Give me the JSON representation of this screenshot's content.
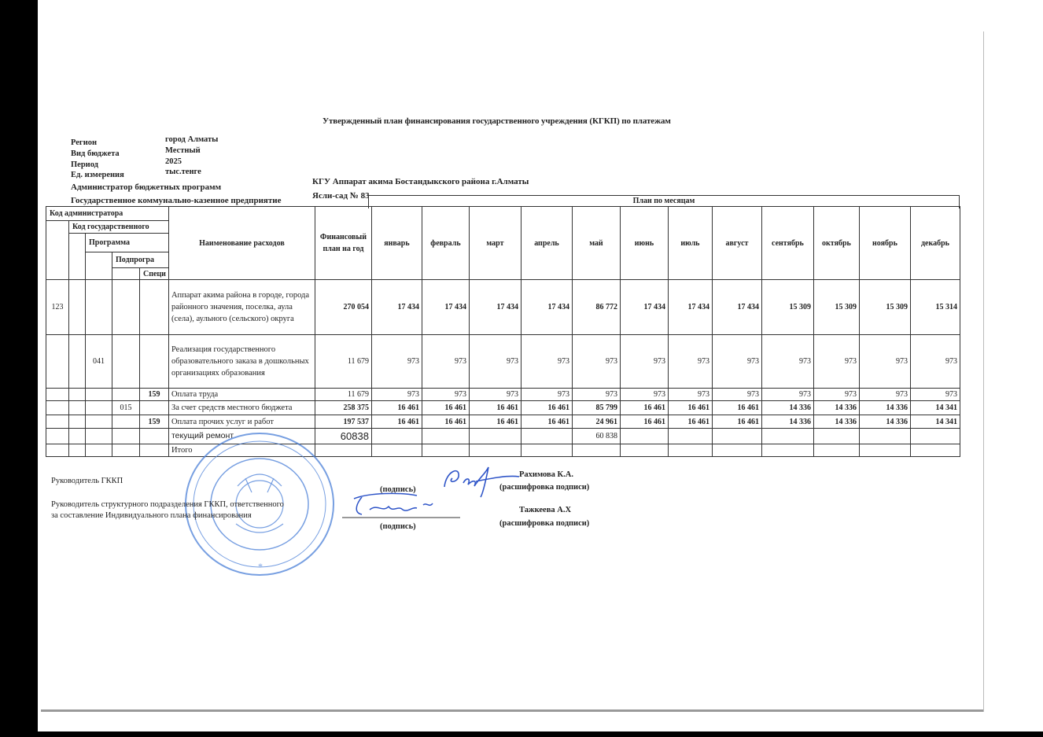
{
  "title": "Утвержденный  план финансирования государственного учреждения (КГКП) по платежам",
  "meta": [
    {
      "label": "Регион",
      "value": "город Алматы"
    },
    {
      "label": "Вид бюджета",
      "value": "Местный"
    },
    {
      "label": "Период",
      "value": "2025"
    },
    {
      "label": "Ед. измерения",
      "value": "тыс.тенге"
    }
  ],
  "administrator": {
    "label": "Администратор бюджетных программ",
    "value": "КГУ Аппарат акима Бостандыкского района г.Алматы"
  },
  "enterprise": {
    "label": "Государственное коммунально-казенное предприятие",
    "value": "Ясли-сад № 83"
  },
  "table": {
    "headers": {
      "admin_code": "Код администратора",
      "gov_code": "Код государственного",
      "program": "Программа",
      "subprogram": "Подпрогра",
      "specific": "Специ",
      "name": "Наименование расходов",
      "annual": "Финансовый план на год",
      "plan_by_month": "План по месяцам",
      "months": [
        "январь",
        "февраль",
        "март",
        "апрель",
        "май",
        "июнь",
        "июль",
        "август",
        "сентябрь",
        "октябрь",
        "ноябрь",
        "декабрь"
      ]
    },
    "rows": [
      {
        "codes": [
          "123",
          "",
          "",
          "",
          ""
        ],
        "name": "Аппарат акима района в городе, города районного значения, поселка, аула (села), аульного (сельского) округа",
        "annual": "270 054",
        "months": [
          "17 434",
          "17 434",
          "17 434",
          "17 434",
          "86 772",
          "17 434",
          "17 434",
          "17 434",
          "15 309",
          "15 309",
          "15 309",
          "15 314"
        ]
      },
      {
        "codes": [
          "",
          "",
          "041",
          "",
          ""
        ],
        "name": "Реализация государственного образовательного заказа в дошкольных организациях образования",
        "annual": "11 679",
        "months": [
          "973",
          "973",
          "973",
          "973",
          "973",
          "973",
          "973",
          "973",
          "973",
          "973",
          "973",
          "973"
        ]
      },
      {
        "codes": [
          "",
          "",
          "",
          "",
          "159"
        ],
        "name": "Оплата труда",
        "annual": "11 679",
        "months": [
          "973",
          "973",
          "973",
          "973",
          "973",
          "973",
          "973",
          "973",
          "973",
          "973",
          "973",
          "973"
        ]
      },
      {
        "codes": [
          "",
          "",
          "",
          "015",
          ""
        ],
        "name": "За счет средств местного бюджета",
        "annual": "258 375",
        "months": [
          "16 461",
          "16 461",
          "16 461",
          "16 461",
          "85 799",
          "16 461",
          "16 461",
          "16 461",
          "14 336",
          "14 336",
          "14 336",
          "14 341"
        ]
      },
      {
        "codes": [
          "",
          "",
          "",
          "",
          "159"
        ],
        "name": "Оплата прочих услуг и работ",
        "annual": "197 537",
        "months": [
          "16 461",
          "16 461",
          "16 461",
          "16 461",
          "24 961",
          "16 461",
          "16 461",
          "16 461",
          "14 336",
          "14 336",
          "14 336",
          "14 341"
        ]
      },
      {
        "codes": [
          "",
          "",
          "",
          "",
          ""
        ],
        "name": "текущий ремонт",
        "annual": "60838",
        "months": [
          "",
          "",
          "",
          "",
          "60 838",
          "",
          "",
          "",
          "",
          "",
          "",
          ""
        ]
      },
      {
        "codes": [
          "",
          "",
          "",
          "",
          ""
        ],
        "name": "Итого",
        "annual": "",
        "months": [
          "",
          "",
          "",
          "",
          "",
          "",
          "",
          "",
          "",
          "",
          "",
          ""
        ]
      }
    ]
  },
  "signatures": {
    "head_label": "Руководитель ГККП",
    "head_sign_caption": "(подпись)",
    "head_name": "Рахимова К.А.",
    "head_name_caption": "(расшифровка подписи)",
    "resp_label_1": "Руководитель структурного подразделения ГККП, ответственного",
    "resp_label_2": "за составление Индивидуального плана финансирования",
    "resp_sign_caption": "(подпись)",
    "resp_name": "Тажкеева А.Х",
    "resp_name_caption": "(расшифровка подписи)"
  },
  "colors": {
    "stamp": "#4a7fd8",
    "signature": "#2f55c8",
    "ink": "#222222"
  }
}
